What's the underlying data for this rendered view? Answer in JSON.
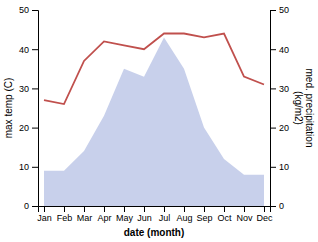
{
  "chart_data": {
    "type": "area",
    "xlabel": "date (month)",
    "ylabel": "max temp (C)",
    "y2label": "med. precipitation\n(kg/m2)",
    "categories": [
      "Jan",
      "Feb",
      "Mar",
      "Apr",
      "May",
      "Jun",
      "Jul",
      "Aug",
      "Sep",
      "Oct",
      "Nov",
      "Dec"
    ],
    "series": [
      {
        "type": "area",
        "color": "#c8d0eb",
        "values": [
          9,
          9,
          14,
          23,
          35,
          33,
          43,
          35,
          20,
          12,
          8,
          8
        ]
      },
      {
        "type": "line",
        "axis": "y2",
        "color": "#c0504d",
        "values": [
          27,
          26,
          37,
          42,
          41,
          40,
          44,
          44,
          43,
          44,
          33,
          31
        ]
      }
    ],
    "ylim": [
      0,
      50
    ],
    "yticks": [
      0,
      10,
      20,
      30,
      40,
      50
    ],
    "y2lim": [
      0,
      50
    ],
    "y2ticks": [
      0,
      10,
      20,
      30,
      40,
      50
    ],
    "grid": false
  }
}
